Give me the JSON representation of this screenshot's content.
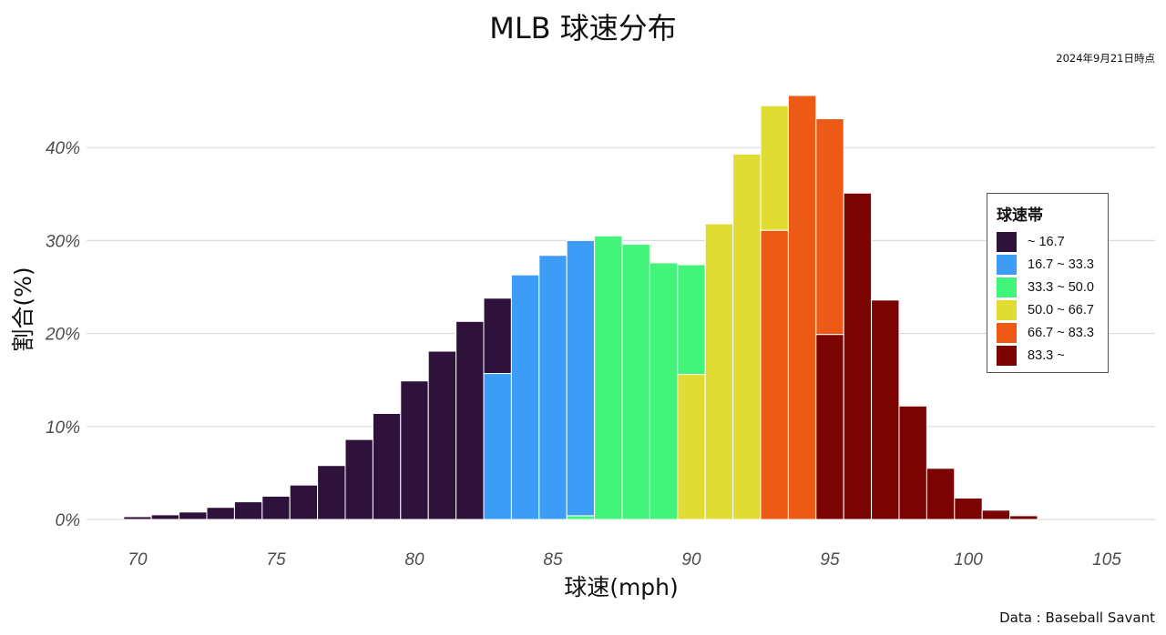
{
  "title": "MLB 球速分布",
  "as_of": "2024年9月21日時点",
  "source": "Data : Baseball Savant",
  "legend": {
    "title": "球速帯",
    "items": [
      {
        "label": "~ 16.7",
        "color": "#2f123c"
      },
      {
        "label": "16.7 ~ 33.3",
        "color": "#3c9cf6"
      },
      {
        "label": "33.3 ~ 50.0",
        "color": "#43f47a"
      },
      {
        "label": "50.0 ~ 66.7",
        "color": "#e0dc34"
      },
      {
        "label": "66.7 ~ 83.3",
        "color": "#ec5a16"
      },
      {
        "label": "83.3 ~",
        "color": "#7b0403"
      }
    ]
  },
  "chart_data": {
    "type": "bar",
    "xlabel": "球速(mph)",
    "ylabel": "割合(%)",
    "xlim": [
      69.5,
      106
    ],
    "ylim": [
      0,
      47
    ],
    "x_ticks": [
      70,
      75,
      80,
      85,
      90,
      95,
      100,
      105
    ],
    "x_tick_labels": [
      "70",
      "75",
      "80",
      "85",
      "90",
      "95",
      "100",
      "105"
    ],
    "y_ticks": [
      0,
      10,
      20,
      30,
      40
    ],
    "y_tick_labels": [
      "0%",
      "10%",
      "20%",
      "30%",
      "40%"
    ],
    "grid": "horizontal",
    "legend_position": "right",
    "bar_width_mph": 1,
    "bars": [
      {
        "x": 70,
        "segments": [
          {
            "band": 0,
            "value": 0.3
          }
        ]
      },
      {
        "x": 71,
        "segments": [
          {
            "band": 0,
            "value": 0.5
          }
        ]
      },
      {
        "x": 72,
        "segments": [
          {
            "band": 0,
            "value": 0.8
          }
        ]
      },
      {
        "x": 73,
        "segments": [
          {
            "band": 0,
            "value": 1.3
          }
        ]
      },
      {
        "x": 74,
        "segments": [
          {
            "band": 0,
            "value": 1.9
          }
        ]
      },
      {
        "x": 75,
        "segments": [
          {
            "band": 0,
            "value": 2.5
          }
        ]
      },
      {
        "x": 76,
        "segments": [
          {
            "band": 0,
            "value": 3.7
          }
        ]
      },
      {
        "x": 77,
        "segments": [
          {
            "band": 0,
            "value": 5.8
          }
        ]
      },
      {
        "x": 78,
        "segments": [
          {
            "band": 0,
            "value": 8.6
          }
        ]
      },
      {
        "x": 79,
        "segments": [
          {
            "band": 0,
            "value": 11.4
          }
        ]
      },
      {
        "x": 80,
        "segments": [
          {
            "band": 0,
            "value": 14.9
          }
        ]
      },
      {
        "x": 81,
        "segments": [
          {
            "band": 0,
            "value": 18.1
          }
        ]
      },
      {
        "x": 82,
        "segments": [
          {
            "band": 0,
            "value": 21.3
          }
        ]
      },
      {
        "x": 83,
        "segments": [
          {
            "band": 1,
            "value": 15.7
          },
          {
            "band": 0,
            "value": 8.1
          }
        ]
      },
      {
        "x": 84,
        "segments": [
          {
            "band": 1,
            "value": 26.3
          }
        ]
      },
      {
        "x": 85,
        "segments": [
          {
            "band": 1,
            "value": 28.4
          }
        ]
      },
      {
        "x": 86,
        "segments": [
          {
            "band": 2,
            "value": 0.4
          },
          {
            "band": 1,
            "value": 29.6
          }
        ]
      },
      {
        "x": 87,
        "segments": [
          {
            "band": 2,
            "value": 30.5
          }
        ]
      },
      {
        "x": 88,
        "segments": [
          {
            "band": 2,
            "value": 29.6
          }
        ]
      },
      {
        "x": 89,
        "segments": [
          {
            "band": 2,
            "value": 27.6
          }
        ]
      },
      {
        "x": 90,
        "segments": [
          {
            "band": 3,
            "value": 15.6
          },
          {
            "band": 2,
            "value": 11.8
          }
        ]
      },
      {
        "x": 91,
        "segments": [
          {
            "band": 3,
            "value": 31.8
          }
        ]
      },
      {
        "x": 92,
        "segments": [
          {
            "band": 3,
            "value": 39.3
          }
        ]
      },
      {
        "x": 93,
        "segments": [
          {
            "band": 4,
            "value": 31.1
          },
          {
            "band": 3,
            "value": 13.4
          }
        ]
      },
      {
        "x": 94,
        "segments": [
          {
            "band": 4,
            "value": 45.6
          }
        ]
      },
      {
        "x": 95,
        "segments": [
          {
            "band": 5,
            "value": 19.9
          },
          {
            "band": 4,
            "value": 23.2
          }
        ]
      },
      {
        "x": 96,
        "segments": [
          {
            "band": 5,
            "value": 35.1
          }
        ]
      },
      {
        "x": 97,
        "segments": [
          {
            "band": 5,
            "value": 23.6
          }
        ]
      },
      {
        "x": 98,
        "segments": [
          {
            "band": 5,
            "value": 12.2
          }
        ]
      },
      {
        "x": 99,
        "segments": [
          {
            "band": 5,
            "value": 5.5
          }
        ]
      },
      {
        "x": 100,
        "segments": [
          {
            "band": 5,
            "value": 2.3
          }
        ]
      },
      {
        "x": 101,
        "segments": [
          {
            "band": 5,
            "value": 1.0
          }
        ]
      },
      {
        "x": 102,
        "segments": [
          {
            "band": 5,
            "value": 0.4
          }
        ]
      }
    ]
  }
}
